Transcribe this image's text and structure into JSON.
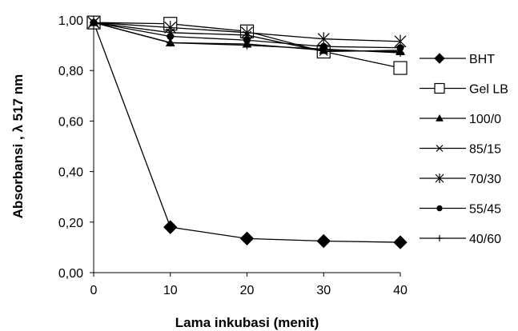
{
  "chart_data": {
    "type": "line",
    "title": "",
    "xlabel": "Lama inkubasi (menit)",
    "ylabel": "Absorbansi ,  λ 517 nm",
    "x": [
      0,
      10,
      20,
      30,
      40
    ],
    "x_tick_labels": [
      "0",
      "10",
      "20",
      "30",
      "40"
    ],
    "y_tick_labels": [
      "0,00",
      "0,20",
      "0,40",
      "0,60",
      "0,80",
      "1,00"
    ],
    "xlim": [
      0,
      40
    ],
    "ylim": [
      0,
      1.0
    ],
    "grid": false,
    "legend_position": "right",
    "series": [
      {
        "name": "BHT",
        "marker": "diamond",
        "values": [
          0.99,
          0.18,
          0.135,
          0.125,
          0.12
        ]
      },
      {
        "name": "Gel LB",
        "marker": "open-square",
        "values": [
          0.99,
          0.985,
          0.955,
          0.875,
          0.81
        ]
      },
      {
        "name": "100/0",
        "marker": "triangle",
        "values": [
          0.99,
          0.91,
          0.905,
          0.88,
          0.875
        ]
      },
      {
        "name": "85/15",
        "marker": "x",
        "values": [
          0.99,
          0.95,
          0.94,
          0.875,
          0.88
        ]
      },
      {
        "name": "70/30",
        "marker": "asterisk",
        "values": [
          0.99,
          0.97,
          0.95,
          0.925,
          0.915
        ]
      },
      {
        "name": "55/45",
        "marker": "circle",
        "values": [
          0.99,
          0.935,
          0.92,
          0.895,
          0.89
        ]
      },
      {
        "name": "40/60",
        "marker": "plus",
        "values": [
          0.99,
          0.91,
          0.9,
          0.885,
          0.87
        ]
      }
    ]
  },
  "colors": {
    "line": "#000000",
    "background": "#ffffff"
  }
}
